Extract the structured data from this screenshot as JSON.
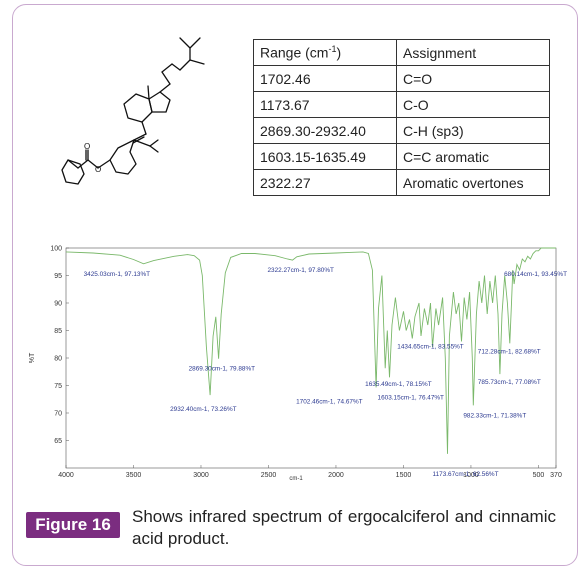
{
  "table": {
    "header": {
      "range": "Range (cm",
      "range_sup": "-1",
      "range_tail": ")",
      "assignment": "Assignment"
    },
    "rows": [
      {
        "range": "1702.46",
        "assignment": "C=O"
      },
      {
        "range": "1173.67",
        "assignment": "C-O"
      },
      {
        "range": "2869.30-2932.40",
        "assignment": "C-H (sp3)"
      },
      {
        "range": "1603.15-1635.49",
        "assignment": "C=C aromatic"
      },
      {
        "range": "2322.27",
        "assignment": "Aromatic overtones"
      }
    ]
  },
  "figure": {
    "label": "Figure 16",
    "caption": "Shows infrared spectrum of ergocalciferol and cinnamic acid product."
  },
  "chart_data": {
    "type": "line",
    "xlabel": "cm-1",
    "ylabel": "%T",
    "xlim": [
      4000,
      370
    ],
    "ylim": [
      60,
      100
    ],
    "x_ticks": [
      {
        "value": 4000,
        "label": "4000"
      },
      {
        "value": 3500,
        "label": "3500"
      },
      {
        "value": 3000,
        "label": "3000"
      },
      {
        "value": 2500,
        "label": "2500"
      },
      {
        "value": 2000,
        "label": "2000"
      },
      {
        "value": 1500,
        "label": "1500"
      },
      {
        "value": 1000,
        "label": "1000"
      },
      {
        "value": 500,
        "label": "500"
      },
      {
        "value": 370,
        "label": "370"
      }
    ],
    "y_ticks": [
      {
        "value": 100,
        "label": "100"
      },
      {
        "value": 95,
        "label": "95"
      },
      {
        "value": 90,
        "label": "90"
      },
      {
        "value": 85,
        "label": "85"
      },
      {
        "value": 80,
        "label": "80"
      },
      {
        "value": 75,
        "label": "75"
      },
      {
        "value": 70,
        "label": "70"
      },
      {
        "value": 65,
        "label": "65"
      }
    ],
    "line_color": "#7ab86a",
    "label_color": "#2b3990",
    "series": [
      {
        "x": [
          4000,
          3800,
          3600,
          3500,
          3425,
          3350,
          3200,
          3100,
          3050,
          3010,
          2990,
          2960,
          2932.4,
          2910,
          2890,
          2869.3,
          2850,
          2820,
          2780,
          2700,
          2600,
          2450,
          2360,
          2322.27,
          2290,
          2200,
          2100,
          2000,
          1900,
          1800,
          1760,
          1730,
          1702.46,
          1685,
          1660,
          1635.49,
          1620,
          1603.15,
          1585,
          1560,
          1530,
          1500,
          1480,
          1455,
          1434.65,
          1415,
          1385,
          1370,
          1345,
          1320,
          1300,
          1285,
          1260,
          1240,
          1210,
          1190,
          1173.67,
          1160,
          1130,
          1110,
          1090,
          1070,
          1050,
          1030,
          1010,
          990,
          982.33,
          960,
          940,
          920,
          900,
          880,
          860,
          840,
          820,
          800,
          785.73,
          770,
          750,
          730,
          712.28,
          700,
          690,
          680.14,
          660,
          640,
          620,
          600,
          580,
          560,
          540,
          520,
          500,
          480,
          460,
          440,
          420,
          400,
          380,
          370
        ],
        "y": [
          99.3,
          99.1,
          98.7,
          97.9,
          97.13,
          97.7,
          98.5,
          98.8,
          98.6,
          97.8,
          95.0,
          82.0,
          73.26,
          84.0,
          87.5,
          79.88,
          88.0,
          95.5,
          98.3,
          99.0,
          99.0,
          98.6,
          98.0,
          97.8,
          98.4,
          98.9,
          99.0,
          99.1,
          99.2,
          99.3,
          99.0,
          96.0,
          74.67,
          89.0,
          95.0,
          78.15,
          85.0,
          76.47,
          86.0,
          91.0,
          85.0,
          88.5,
          85.0,
          87.0,
          83.55,
          87.5,
          90.0,
          84.0,
          89.0,
          86.0,
          90.0,
          82.0,
          89.0,
          86.0,
          91.0,
          80.0,
          62.56,
          84.0,
          92.0,
          88.0,
          90.0,
          83.0,
          91.0,
          87.0,
          92.0,
          80.0,
          71.38,
          88.0,
          94.0,
          90.0,
          95.0,
          88.0,
          94.0,
          90.0,
          95.0,
          88.0,
          77.08,
          88.0,
          95.0,
          90.0,
          82.68,
          90.0,
          96.0,
          93.45,
          97.0,
          96.0,
          98.0,
          97.5,
          98.5,
          98.0,
          99.0,
          99.5,
          99.5,
          100.0,
          100.0,
          100.5,
          100.8,
          101.0,
          101.5,
          101.5
        ]
      }
    ],
    "annotations": [
      {
        "x": 3425.03,
        "y": 97.13,
        "text": "3425.03cm-1, 97.13%T"
      },
      {
        "x": 2322.27,
        "y": 97.8,
        "text": "2322.27cm-1, 97.80%T"
      },
      {
        "x": 2869.3,
        "y": 79.88,
        "text": "2869.30cm-1, 79.88%T"
      },
      {
        "x": 2932.4,
        "y": 73.26,
        "text": "2932.40cm-1, 73.26%T"
      },
      {
        "x": 1702.46,
        "y": 74.67,
        "text": "1702.46cm-1, 74.67%T"
      },
      {
        "x": 1635.49,
        "y": 78.15,
        "text": "1635.49cm-1, 78.15%T"
      },
      {
        "x": 1603.15,
        "y": 76.47,
        "text": "1603.15cm-1, 76.47%T"
      },
      {
        "x": 1434.65,
        "y": 83.55,
        "text": "1434.65cm-1, 83.55%T"
      },
      {
        "x": 1173.67,
        "y": 62.56,
        "text": "1173.67cm-1, 62.56%T"
      },
      {
        "x": 982.33,
        "y": 71.38,
        "text": "982.33cm-1, 71.38%T"
      },
      {
        "x": 785.73,
        "y": 77.08,
        "text": "785.73cm-1, 77.08%T"
      },
      {
        "x": 712.28,
        "y": 82.68,
        "text": "712.28cm-1, 82.68%T"
      },
      {
        "x": 680.14,
        "y": 93.45,
        "text": "680.14cm-1, 93.45%T"
      }
    ]
  }
}
